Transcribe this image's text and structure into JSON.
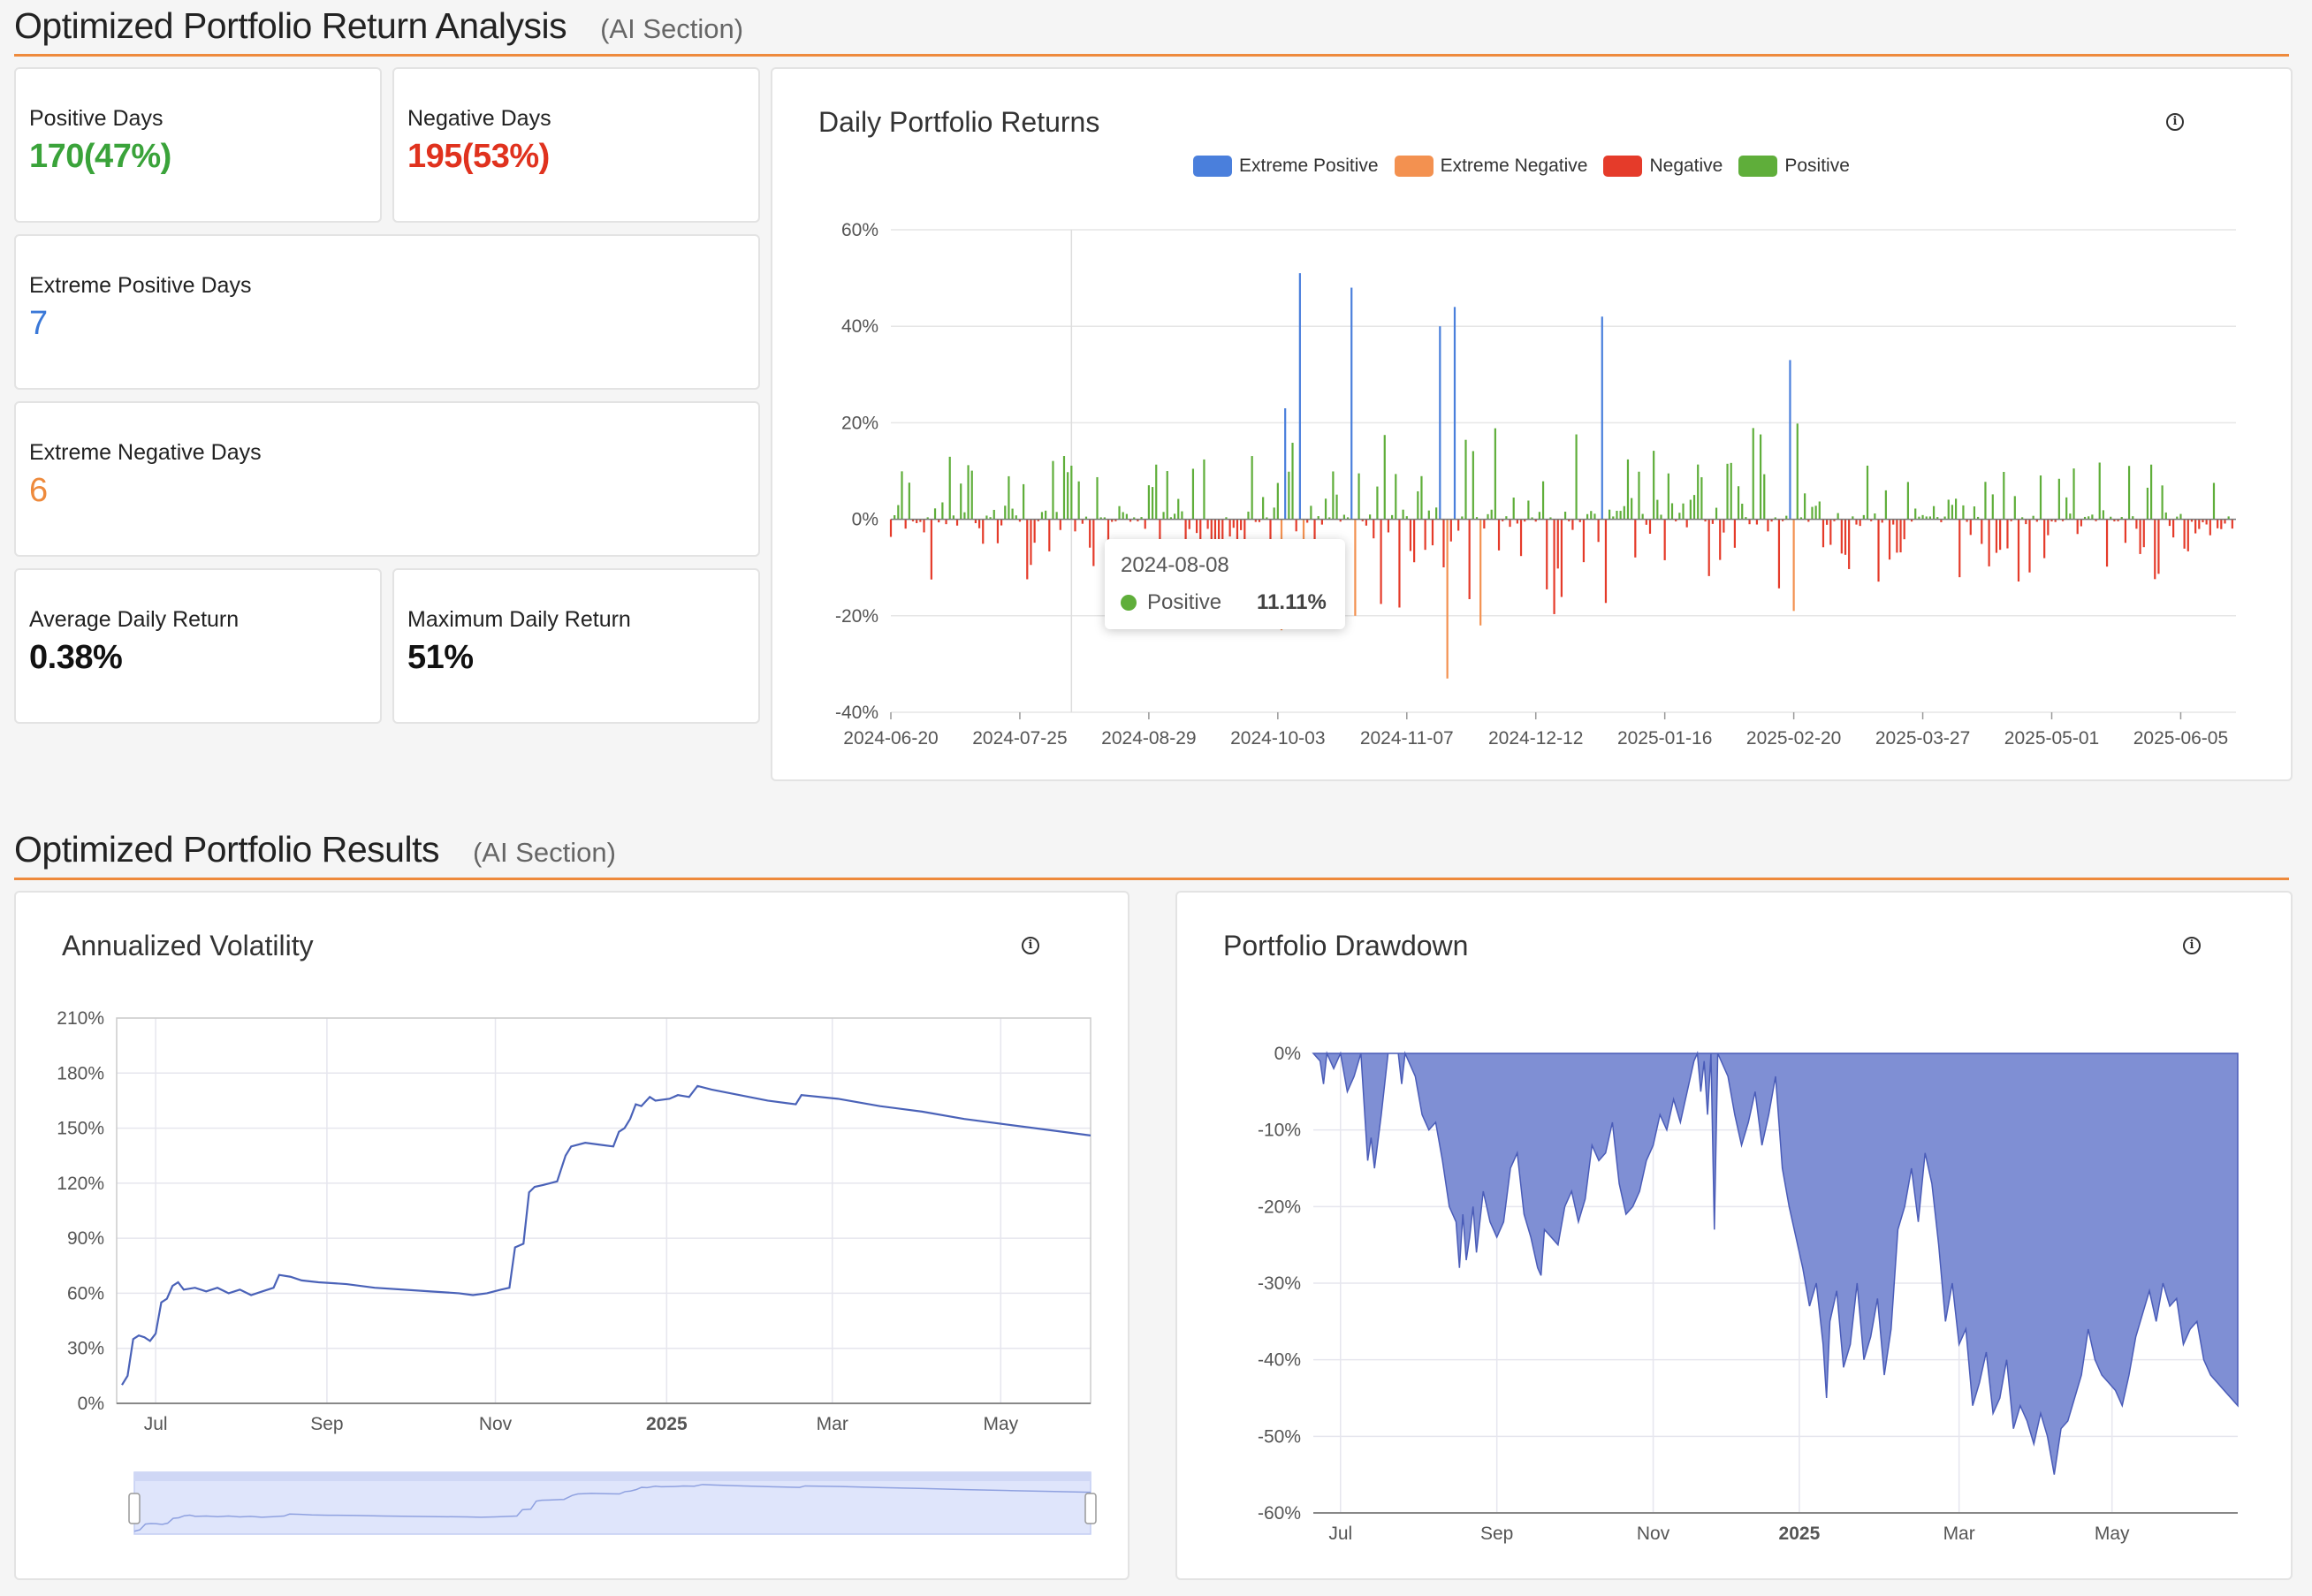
{
  "section1": {
    "title": "Optimized Portfolio Return Analysis",
    "subtitle": "(AI Section)"
  },
  "section2": {
    "title": "Optimized Portfolio Results",
    "subtitle": "(AI Section)"
  },
  "stats": {
    "positive_days": {
      "label": "Positive Days",
      "value": "170(47%)",
      "color": "#3aa33a"
    },
    "negative_days": {
      "label": "Negative Days",
      "value": "195(53%)",
      "color": "#e0321e"
    },
    "extreme_positive": {
      "label": "Extreme Positive Days",
      "value": "7",
      "color": "#3a78d8"
    },
    "extreme_negative": {
      "label": "Extreme Negative Days",
      "value": "6",
      "color": "#ee8a3c"
    },
    "avg_return": {
      "label": "Average Daily Return",
      "value": "0.38%"
    },
    "max_return": {
      "label": "Maximum Daily Return",
      "value": "51%"
    }
  },
  "icons": {
    "info": "info-icon"
  },
  "colors": {
    "extreme_positive": "#4a7fdc",
    "extreme_negative": "#f39150",
    "negative": "#e53b2a",
    "positive": "#5fae3a",
    "volatility_line": "#4a62b8",
    "drawdown_fill": "#7f8fd4",
    "accent": "#ee8a3c"
  },
  "tooltip": {
    "date": "2024-08-08",
    "series": "Positive",
    "value": "11.11%"
  },
  "chart_data": [
    {
      "type": "bar",
      "title": "Daily Portfolio Returns",
      "legend": [
        "Extreme Positive",
        "Extreme Negative",
        "Negative",
        "Positive"
      ],
      "legend_placement": "top",
      "x_tick_labels": [
        "2024-06-20",
        "2024-07-25",
        "2024-08-29",
        "2024-10-03",
        "2024-11-07",
        "2024-12-12",
        "2025-01-16",
        "2025-02-20",
        "2025-03-27",
        "2025-05-01",
        "2025-06-05"
      ],
      "y_tick_labels": [
        "60%",
        "40%",
        "20%",
        "0%",
        "-20%",
        "-40%"
      ],
      "ylim": [
        -40,
        60
      ],
      "grid": true,
      "extreme_positive": [
        {
          "day": 107,
          "value": 23
        },
        {
          "day": 111,
          "value": 51
        },
        {
          "day": 125,
          "value": 48
        },
        {
          "day": 149,
          "value": 40
        },
        {
          "day": 153,
          "value": 44
        },
        {
          "day": 193,
          "value": 42
        },
        {
          "day": 244,
          "value": 33
        }
      ],
      "extreme_negative": [
        {
          "day": 106,
          "value": -23
        },
        {
          "day": 112,
          "value": -18
        },
        {
          "day": 126,
          "value": -20
        },
        {
          "day": 151,
          "value": -33
        },
        {
          "day": 160,
          "value": -22
        },
        {
          "day": 245,
          "value": -19
        }
      ],
      "highlight": {
        "day": 49,
        "value": 11.11
      }
    },
    {
      "type": "line",
      "title": "Annualized Volatility",
      "x_tick_labels": [
        "Jul",
        "Sep",
        "Nov",
        "2025",
        "Mar",
        "May"
      ],
      "y_tick_labels": [
        "210%",
        "180%",
        "150%",
        "120%",
        "90%",
        "60%",
        "30%",
        "0%"
      ],
      "ylim": [
        0,
        210
      ],
      "grid": true,
      "points": [
        [
          0,
          10
        ],
        [
          2,
          15
        ],
        [
          4,
          35
        ],
        [
          6,
          37
        ],
        [
          8,
          36
        ],
        [
          10,
          34
        ],
        [
          12,
          38
        ],
        [
          14,
          55
        ],
        [
          16,
          57
        ],
        [
          18,
          64
        ],
        [
          20,
          66
        ],
        [
          22,
          62
        ],
        [
          26,
          63
        ],
        [
          30,
          61
        ],
        [
          34,
          63
        ],
        [
          38,
          60
        ],
        [
          42,
          62
        ],
        [
          46,
          59
        ],
        [
          50,
          61
        ],
        [
          54,
          63
        ],
        [
          56,
          70
        ],
        [
          60,
          69
        ],
        [
          64,
          67
        ],
        [
          70,
          66
        ],
        [
          80,
          65
        ],
        [
          90,
          63
        ],
        [
          100,
          62
        ],
        [
          110,
          61
        ],
        [
          120,
          60
        ],
        [
          125,
          59
        ],
        [
          130,
          60
        ],
        [
          135,
          62
        ],
        [
          138,
          63
        ],
        [
          140,
          85
        ],
        [
          143,
          87
        ],
        [
          145,
          115
        ],
        [
          147,
          118
        ],
        [
          150,
          119
        ],
        [
          155,
          121
        ],
        [
          158,
          135
        ],
        [
          160,
          140
        ],
        [
          165,
          142
        ],
        [
          170,
          141
        ],
        [
          175,
          140
        ],
        [
          177,
          148
        ],
        [
          179,
          150
        ],
        [
          181,
          155
        ],
        [
          183,
          163
        ],
        [
          185,
          162
        ],
        [
          188,
          167
        ],
        [
          190,
          165
        ],
        [
          195,
          166
        ],
        [
          198,
          168
        ],
        [
          202,
          167
        ],
        [
          205,
          173
        ],
        [
          210,
          171
        ],
        [
          220,
          168
        ],
        [
          230,
          165
        ],
        [
          240,
          163
        ],
        [
          242,
          168
        ],
        [
          255,
          166
        ],
        [
          270,
          162
        ],
        [
          285,
          159
        ],
        [
          300,
          155
        ],
        [
          315,
          152
        ],
        [
          330,
          149
        ],
        [
          345,
          146
        ]
      ],
      "x_range": [
        0,
        345
      ]
    },
    {
      "type": "area",
      "title": "Portfolio Drawdown",
      "x_tick_labels": [
        "Jul",
        "Sep",
        "Nov",
        "2025",
        "Mar",
        "May"
      ],
      "y_tick_labels": [
        "0%",
        "-10%",
        "-20%",
        "-30%",
        "-40%",
        "-50%",
        "-60%"
      ],
      "ylim": [
        -60,
        0
      ],
      "grid": true,
      "points": [
        [
          0,
          0
        ],
        [
          2,
          -1
        ],
        [
          3,
          -4
        ],
        [
          4,
          0
        ],
        [
          6,
          -2
        ],
        [
          8,
          0
        ],
        [
          10,
          -5
        ],
        [
          12,
          -3
        ],
        [
          14,
          0
        ],
        [
          16,
          -14
        ],
        [
          17,
          -11
        ],
        [
          18,
          -15
        ],
        [
          20,
          -8
        ],
        [
          22,
          0
        ],
        [
          25,
          0
        ],
        [
          26,
          -4
        ],
        [
          27,
          0
        ],
        [
          30,
          -3
        ],
        [
          32,
          -8
        ],
        [
          34,
          -10
        ],
        [
          36,
          -9
        ],
        [
          38,
          -14
        ],
        [
          40,
          -20
        ],
        [
          42,
          -22
        ],
        [
          43,
          -28
        ],
        [
          44,
          -21
        ],
        [
          45,
          -27
        ],
        [
          46,
          -24
        ],
        [
          47,
          -20
        ],
        [
          48,
          -26
        ],
        [
          50,
          -18
        ],
        [
          52,
          -22
        ],
        [
          54,
          -24
        ],
        [
          56,
          -22
        ],
        [
          58,
          -15
        ],
        [
          60,
          -13
        ],
        [
          62,
          -21
        ],
        [
          64,
          -24
        ],
        [
          66,
          -28
        ],
        [
          67,
          -29
        ],
        [
          68,
          -23
        ],
        [
          70,
          -24
        ],
        [
          72,
          -25
        ],
        [
          74,
          -20
        ],
        [
          76,
          -18
        ],
        [
          78,
          -22
        ],
        [
          80,
          -19
        ],
        [
          82,
          -12
        ],
        [
          84,
          -14
        ],
        [
          86,
          -13
        ],
        [
          88,
          -9
        ],
        [
          90,
          -17
        ],
        [
          92,
          -21
        ],
        [
          94,
          -20
        ],
        [
          96,
          -18
        ],
        [
          98,
          -14
        ],
        [
          100,
          -12
        ],
        [
          102,
          -8
        ],
        [
          104,
          -10
        ],
        [
          106,
          -6
        ],
        [
          108,
          -9
        ],
        [
          110,
          -5
        ],
        [
          112,
          -1
        ],
        [
          113,
          0
        ],
        [
          114,
          -5
        ],
        [
          115,
          -1
        ],
        [
          116,
          -8
        ],
        [
          117,
          0
        ],
        [
          118,
          -23
        ],
        [
          119,
          0
        ],
        [
          122,
          -3
        ],
        [
          124,
          -8
        ],
        [
          126,
          -12
        ],
        [
          128,
          -9
        ],
        [
          130,
          -5
        ],
        [
          132,
          -12
        ],
        [
          134,
          -8
        ],
        [
          136,
          -3
        ],
        [
          138,
          -15
        ],
        [
          140,
          -20
        ],
        [
          142,
          -24
        ],
        [
          144,
          -28
        ],
        [
          146,
          -33
        ],
        [
          148,
          -30
        ],
        [
          150,
          -38
        ],
        [
          151,
          -45
        ],
        [
          152,
          -35
        ],
        [
          154,
          -31
        ],
        [
          156,
          -41
        ],
        [
          158,
          -38
        ],
        [
          160,
          -30
        ],
        [
          162,
          -40
        ],
        [
          164,
          -37
        ],
        [
          166,
          -32
        ],
        [
          168,
          -42
        ],
        [
          170,
          -36
        ],
        [
          172,
          -23
        ],
        [
          174,
          -20
        ],
        [
          176,
          -15
        ],
        [
          178,
          -22
        ],
        [
          180,
          -13
        ],
        [
          182,
          -17
        ],
        [
          184,
          -25
        ],
        [
          186,
          -35
        ],
        [
          188,
          -30
        ],
        [
          190,
          -38
        ],
        [
          192,
          -36
        ],
        [
          194,
          -46
        ],
        [
          196,
          -43
        ],
        [
          198,
          -39
        ],
        [
          200,
          -47
        ],
        [
          202,
          -45
        ],
        [
          204,
          -40
        ],
        [
          206,
          -49
        ],
        [
          208,
          -46
        ],
        [
          210,
          -48
        ],
        [
          212,
          -51
        ],
        [
          214,
          -47
        ],
        [
          216,
          -50
        ],
        [
          218,
          -55
        ],
        [
          220,
          -49
        ],
        [
          222,
          -48
        ],
        [
          224,
          -45
        ],
        [
          226,
          -42
        ],
        [
          228,
          -36
        ],
        [
          230,
          -40
        ],
        [
          232,
          -42
        ],
        [
          234,
          -43
        ],
        [
          236,
          -44
        ],
        [
          238,
          -46
        ],
        [
          240,
          -42
        ],
        [
          242,
          -37
        ],
        [
          244,
          -34
        ],
        [
          246,
          -31
        ],
        [
          248,
          -35
        ],
        [
          250,
          -30
        ],
        [
          252,
          -33
        ],
        [
          254,
          -32
        ],
        [
          256,
          -38
        ],
        [
          258,
          -36
        ],
        [
          260,
          -35
        ],
        [
          262,
          -40
        ],
        [
          264,
          -42
        ],
        [
          266,
          -43
        ],
        [
          268,
          -44
        ],
        [
          270,
          -45
        ],
        [
          272,
          -46
        ]
      ],
      "x_range": [
        0,
        272
      ]
    }
  ]
}
